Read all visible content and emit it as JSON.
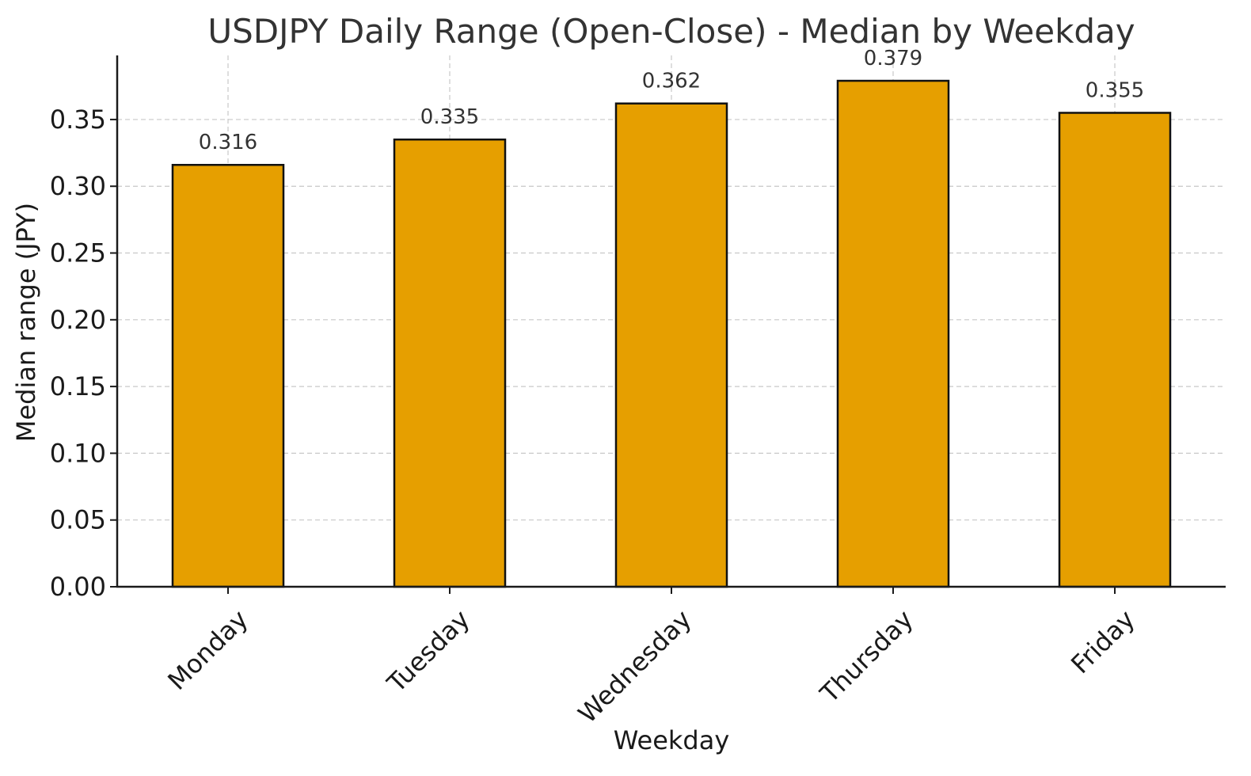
{
  "chart_data": {
    "type": "bar",
    "title": "USDJPY Daily Range (Open-Close) - Median by Weekday",
    "xlabel": "Weekday",
    "ylabel": "Median range (JPY)",
    "categories": [
      "Monday",
      "Tuesday",
      "Wednesday",
      "Thursday",
      "Friday"
    ],
    "values": [
      0.316,
      0.335,
      0.362,
      0.379,
      0.355
    ],
    "data_labels": [
      "0.316",
      "0.335",
      "0.362",
      "0.379",
      "0.355"
    ],
    "ylim": [
      0,
      0.398
    ],
    "yticks": [
      0.0,
      0.05,
      0.1,
      0.15,
      0.2,
      0.25,
      0.3,
      0.35
    ],
    "ytick_labels": [
      "0.00",
      "0.05",
      "0.10",
      "0.15",
      "0.20",
      "0.25",
      "0.30",
      "0.35"
    ],
    "grid": true,
    "bar_color": "#E69F00",
    "edge_color": "#111111"
  }
}
